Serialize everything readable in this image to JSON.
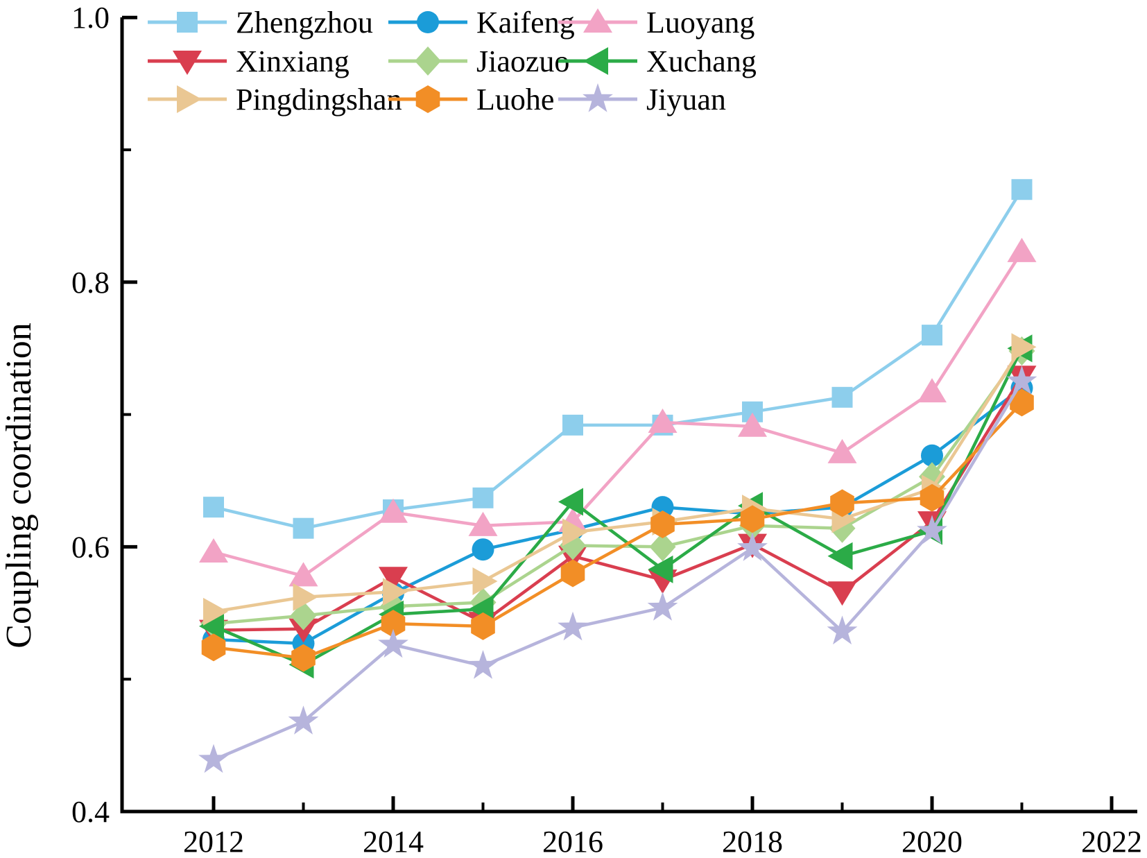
{
  "figure": {
    "background": "#ffffff",
    "axis_color": "#000000",
    "ylabel": "Coupling coordination"
  },
  "chart_data": {
    "type": "line",
    "title": "",
    "xlabel": "",
    "ylabel": "Coupling coordination",
    "x": [
      2012,
      2013,
      2014,
      2015,
      2016,
      2017,
      2018,
      2019,
      2020,
      2021
    ],
    "x_major_ticks": [
      2012,
      2014,
      2016,
      2018,
      2020,
      2022
    ],
    "x_tick_labels": [
      "2012",
      "2014",
      "2016",
      "2018",
      "2020",
      "2022"
    ],
    "x_minor_ticks": [
      2013,
      2015,
      2017,
      2019,
      2021
    ],
    "y_major_ticks": [
      0.4,
      0.6,
      0.8,
      1.0
    ],
    "y_tick_labels": [
      "0.4",
      "0.6",
      "0.8",
      "1.0"
    ],
    "y_minor_ticks": [
      0.5,
      0.7,
      0.9
    ],
    "ylim": [
      0.4,
      1.0
    ],
    "xlim": [
      2011,
      2022.3
    ],
    "grid": false,
    "legend_position": "top-left-inside-3-columns",
    "legend_order": [
      [
        "Zhengzhou",
        "Kaifeng",
        "Luoyang"
      ],
      [
        "Xinxiang",
        "Jiaozuo",
        "Xuchang"
      ],
      [
        "Pingdingshan",
        "Luohe",
        "Jiyuan"
      ]
    ],
    "series": [
      {
        "name": "Zhengzhou",
        "marker": "square",
        "color": "#8DCEEC",
        "values": [
          0.63,
          0.614,
          0.628,
          0.637,
          0.692,
          0.692,
          0.702,
          0.713,
          0.76,
          0.87
        ]
      },
      {
        "name": "Kaifeng",
        "marker": "circle",
        "color": "#1B9CD8",
        "values": [
          0.53,
          0.527,
          0.565,
          0.598,
          0.613,
          0.63,
          0.625,
          0.63,
          0.669,
          0.72
        ]
      },
      {
        "name": "Luoyang",
        "marker": "triangle-up",
        "color": "#F2A3C5",
        "values": [
          0.596,
          0.578,
          0.626,
          0.616,
          0.619,
          0.694,
          0.691,
          0.671,
          0.717,
          0.823
        ]
      },
      {
        "name": "Xinxiang",
        "marker": "triangle-down",
        "color": "#D93E4F",
        "values": [
          0.537,
          0.538,
          0.577,
          0.543,
          0.593,
          0.575,
          0.602,
          0.566,
          0.619,
          0.729
        ]
      },
      {
        "name": "Jiaozuo",
        "marker": "diamond",
        "color": "#ABD48E",
        "values": [
          0.542,
          0.548,
          0.555,
          0.558,
          0.601,
          0.6,
          0.616,
          0.614,
          0.653,
          0.748
        ]
      },
      {
        "name": "Xuchang",
        "marker": "triangle-left",
        "color": "#2BAB47",
        "values": [
          0.54,
          0.511,
          0.549,
          0.553,
          0.634,
          0.583,
          0.631,
          0.593,
          0.612,
          0.75
        ]
      },
      {
        "name": "Pingdingshan",
        "marker": "triangle-right",
        "color": "#EAC793",
        "values": [
          0.551,
          0.562,
          0.566,
          0.574,
          0.611,
          0.619,
          0.629,
          0.621,
          0.644,
          0.751
        ]
      },
      {
        "name": "Luohe",
        "marker": "hexagon",
        "color": "#F28E26",
        "values": [
          0.524,
          0.516,
          0.542,
          0.54,
          0.58,
          0.617,
          0.621,
          0.633,
          0.637,
          0.709
        ]
      },
      {
        "name": "Jiyuan",
        "marker": "star",
        "color": "#B6B4DC",
        "values": [
          0.439,
          0.468,
          0.526,
          0.51,
          0.539,
          0.554,
          0.599,
          0.536,
          0.612,
          0.725
        ]
      }
    ]
  }
}
